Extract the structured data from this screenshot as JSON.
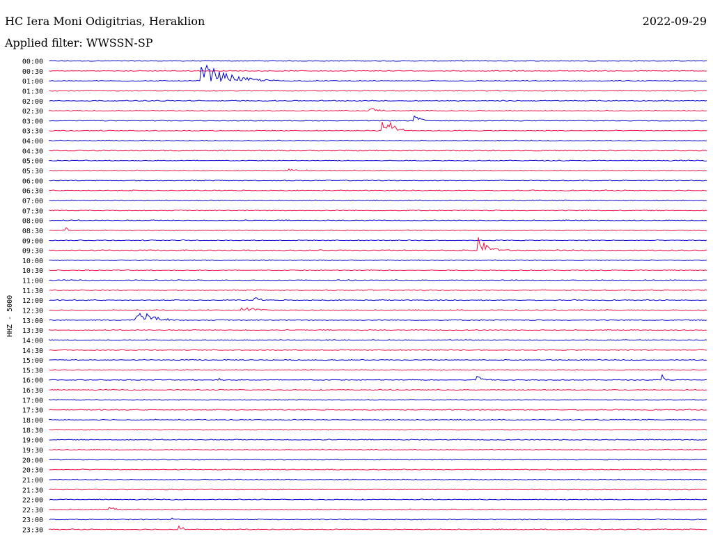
{
  "header": {
    "station": "HC Iera Moni Odigitrias, Heraklion",
    "filter": "Applied filter: WWSSN-SP",
    "date": "2022-09-29"
  },
  "chart_data": {
    "type": "line",
    "title": "HC Iera Moni Odigitrias, Heraklion",
    "subtitle": "Applied filter: WWSSN-SP",
    "date": "2022-09-29",
    "ylabel": "HHZ - 5000",
    "colors": {
      "even": "#0000cc",
      "odd": "#ee1144"
    },
    "y_ticks": [
      "00:00",
      "00:30",
      "01:00",
      "01:30",
      "02:00",
      "02:30",
      "03:00",
      "03:30",
      "04:00",
      "04:30",
      "05:00",
      "05:30",
      "06:00",
      "06:30",
      "07:00",
      "07:30",
      "08:00",
      "08:30",
      "09:00",
      "09:30",
      "10:00",
      "10:30",
      "11:00",
      "11:30",
      "12:00",
      "12:30",
      "13:00",
      "13:30",
      "14:00",
      "14:30",
      "15:00",
      "15:30",
      "16:00",
      "16:30",
      "17:00",
      "17:30",
      "18:00",
      "18:30",
      "19:00",
      "19:30",
      "20:00",
      "20:30",
      "21:00",
      "21:30",
      "22:00",
      "22:30",
      "23:00",
      "23:30"
    ],
    "events": [
      {
        "row": 2,
        "x": 0.23,
        "amp": 30,
        "dur": 0.12
      },
      {
        "row": 5,
        "x": 0.485,
        "amp": 6,
        "dur": 0.05
      },
      {
        "row": 6,
        "x": 0.553,
        "amp": 12,
        "dur": 0.03
      },
      {
        "row": 7,
        "x": 0.505,
        "amp": 28,
        "dur": 0.05
      },
      {
        "row": 11,
        "x": 0.364,
        "amp": 8,
        "dur": 0.02
      },
      {
        "row": 17,
        "x": 0.02,
        "amp": 8,
        "dur": 0.03
      },
      {
        "row": 18,
        "x": 0.197,
        "amp": 5,
        "dur": 0.03
      },
      {
        "row": 19,
        "x": 0.65,
        "amp": 22,
        "dur": 0.05
      },
      {
        "row": 24,
        "x": 0.31,
        "amp": 6,
        "dur": 0.04
      },
      {
        "row": 25,
        "x": 0.29,
        "amp": 9,
        "dur": 0.06
      },
      {
        "row": 26,
        "x": 0.13,
        "amp": 22,
        "dur": 0.07
      },
      {
        "row": 32,
        "x": 0.255,
        "amp": 12,
        "dur": 0.01
      },
      {
        "row": 32,
        "x": 0.648,
        "amp": 14,
        "dur": 0.03
      },
      {
        "row": 32,
        "x": 0.93,
        "amp": 10,
        "dur": 0.02
      },
      {
        "row": 45,
        "x": 0.09,
        "amp": 5,
        "dur": 0.05
      },
      {
        "row": 46,
        "x": 0.18,
        "amp": 5,
        "dur": 0.03
      },
      {
        "row": 47,
        "x": 0.195,
        "amp": 12,
        "dur": 0.02
      }
    ]
  }
}
